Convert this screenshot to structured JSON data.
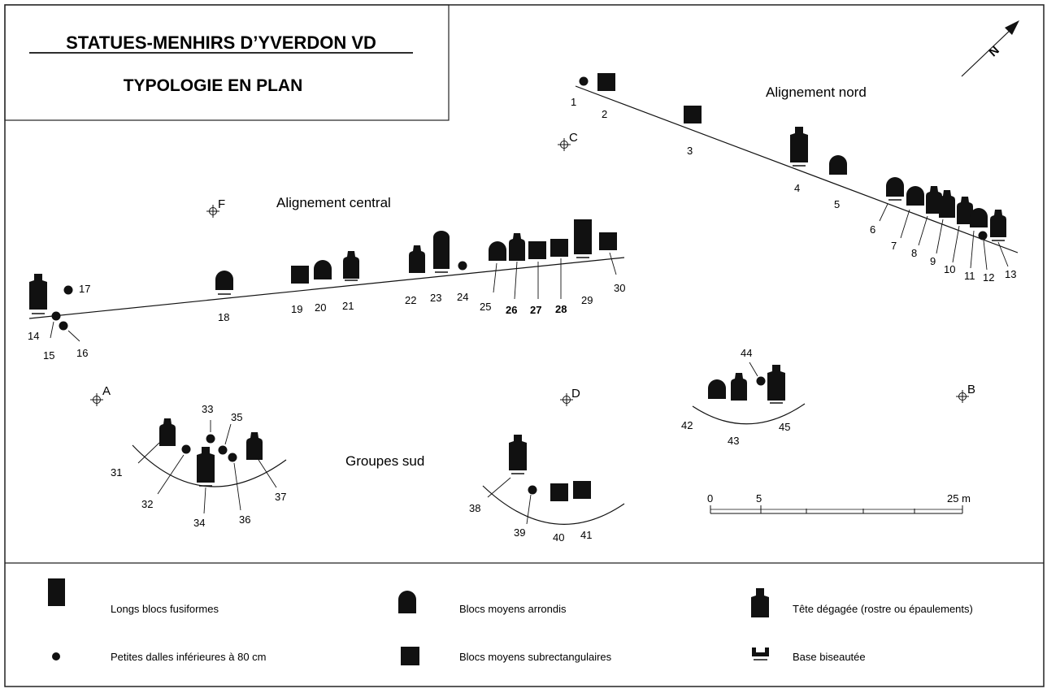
{
  "title": "STATUES-MENHIRS D’YVERDON VD",
  "subtitle": "TYPOLOGIE EN PLAN",
  "groups": {
    "nord": "Alignement nord",
    "central": "Alignement central",
    "sud": "Groupes sud"
  },
  "points": {
    "A": "A",
    "B": "B",
    "C": "C",
    "D": "D",
    "F": "F"
  },
  "north": "N",
  "scale": {
    "zero": "0",
    "five": "5",
    "max": "25 m"
  },
  "numbers": [
    "1",
    "2",
    "3",
    "4",
    "5",
    "6",
    "7",
    "8",
    "9",
    "10",
    "11",
    "12",
    "13",
    "14",
    "15",
    "16",
    "17",
    "18",
    "19",
    "20",
    "21",
    "22",
    "23",
    "24",
    "25",
    "26",
    "27",
    "28",
    "29",
    "30",
    "31",
    "32",
    "33",
    "34",
    "35",
    "36",
    "37",
    "38",
    "39",
    "40",
    "41",
    "42",
    "43",
    "44",
    "45"
  ],
  "legend": {
    "long": "Longs blocs fusiformes",
    "small": "Petites dalles inférieures à 80 cm",
    "rounded": "Blocs moyens arrondis",
    "rect": "Blocs moyens subrectangulaires",
    "head": "Tête dégagée (rostre ou épaulements)",
    "base": "Base biseautée"
  }
}
